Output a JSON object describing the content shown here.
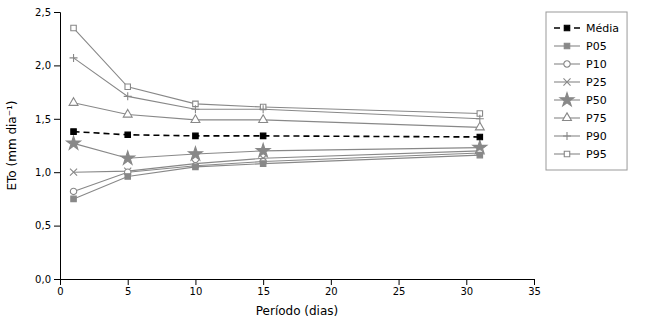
{
  "chart_data": {
    "type": "line",
    "x": [
      1,
      5,
      10,
      15,
      31
    ],
    "series": [
      {
        "name": "Média",
        "color": "#000000",
        "marker": "square",
        "line_style": "dashed",
        "values": [
          1.38,
          1.35,
          1.34,
          1.34,
          1.33
        ]
      },
      {
        "name": "P05",
        "color": "#888888",
        "marker": "square",
        "line_style": "solid",
        "values": [
          0.75,
          0.96,
          1.05,
          1.08,
          1.16
        ]
      },
      {
        "name": "P10",
        "color": "#888888",
        "marker": "open-circle",
        "line_style": "solid",
        "values": [
          0.82,
          1.0,
          1.06,
          1.1,
          1.18
        ]
      },
      {
        "name": "P25",
        "color": "#888888",
        "marker": "x",
        "line_style": "solid",
        "values": [
          1.0,
          1.01,
          1.08,
          1.13,
          1.2
        ]
      },
      {
        "name": "P50",
        "color": "#888888",
        "marker": "star",
        "line_style": "solid",
        "values": [
          1.27,
          1.13,
          1.17,
          1.2,
          1.23
        ]
      },
      {
        "name": "P75",
        "color": "#888888",
        "marker": "open-triangle",
        "line_style": "solid",
        "values": [
          1.65,
          1.54,
          1.49,
          1.49,
          1.42
        ]
      },
      {
        "name": "P90",
        "color": "#888888",
        "marker": "plus",
        "line_style": "solid",
        "values": [
          2.07,
          1.71,
          1.59,
          1.59,
          1.5
        ]
      },
      {
        "name": "P95",
        "color": "#888888",
        "marker": "open-square",
        "line_style": "solid",
        "values": [
          2.35,
          1.8,
          1.64,
          1.61,
          1.55
        ]
      }
    ],
    "xlabel": "Período (dias)",
    "ylabel": "ETo (mm dia⁻¹)",
    "xlim": [
      0,
      35
    ],
    "xticks": [
      0,
      5,
      10,
      15,
      20,
      25,
      30,
      35
    ],
    "ylim": [
      0.0,
      2.5
    ],
    "yticks": [
      {
        "value": 0.0,
        "label": "0,0"
      },
      {
        "value": 0.5,
        "label": "0,5"
      },
      {
        "value": 1.0,
        "label": "1,0"
      },
      {
        "value": 1.5,
        "label": "1,5"
      },
      {
        "value": 2.0,
        "label": "2,0"
      },
      {
        "value": 2.5,
        "label": "2,5"
      }
    ],
    "grid": false,
    "legend": "right"
  }
}
